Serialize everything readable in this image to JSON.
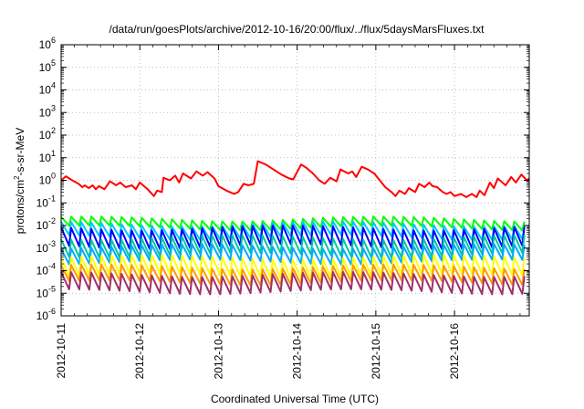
{
  "chart_data": {
    "type": "line",
    "title": "/data/run/goesPlots/archive/2012-10-16/20:00/flux/../flux/5daysMarsFluxes.txt",
    "xlabel": "Coordinated Universal Time (UTC)",
    "ylabel": {
      "base": "protons/cm",
      "sup": "2",
      "rest": "-s-sr-MeV"
    },
    "y_scale": "log",
    "ylim_exponents": [
      -6,
      6
    ],
    "y_ticks": [
      {
        "base": "10",
        "exp": "-6"
      },
      {
        "base": "10",
        "exp": "-5"
      },
      {
        "base": "10",
        "exp": "-4"
      },
      {
        "base": "10",
        "exp": "-3"
      },
      {
        "base": "10",
        "exp": "-2"
      },
      {
        "base": "10",
        "exp": "-1"
      },
      {
        "base": "10",
        "exp": "0"
      },
      {
        "base": "10",
        "exp": "1"
      },
      {
        "base": "10",
        "exp": "2"
      },
      {
        "base": "10",
        "exp": "3"
      },
      {
        "base": "10",
        "exp": "4"
      },
      {
        "base": "10",
        "exp": "5"
      },
      {
        "base": "10",
        "exp": "6"
      }
    ],
    "x_ticks": [
      "2012-10-11",
      "2012-10-12",
      "2012-10-13",
      "2012-10-14",
      "2012-10-15",
      "2012-10-16"
    ],
    "x_range_days": [
      0,
      5.95
    ],
    "grid": true,
    "series": [
      {
        "color": "#ff0000",
        "points": [
          [
            0.0,
            1.0
          ],
          [
            0.06,
            1.5
          ],
          [
            0.14,
            1.0
          ],
          [
            0.22,
            0.7
          ],
          [
            0.27,
            0.5
          ],
          [
            0.3,
            0.6
          ],
          [
            0.35,
            0.45
          ],
          [
            0.4,
            0.6
          ],
          [
            0.44,
            0.4
          ],
          [
            0.48,
            0.55
          ],
          [
            0.55,
            0.4
          ],
          [
            0.62,
            0.9
          ],
          [
            0.7,
            0.6
          ],
          [
            0.75,
            0.8
          ],
          [
            0.82,
            0.5
          ],
          [
            0.9,
            0.6
          ],
          [
            0.95,
            0.4
          ],
          [
            1.0,
            0.8
          ],
          [
            1.1,
            0.4
          ],
          [
            1.18,
            0.2
          ],
          [
            1.22,
            0.35
          ],
          [
            1.28,
            0.3
          ],
          [
            1.3,
            1.3
          ],
          [
            1.38,
            1.0
          ],
          [
            1.45,
            1.6
          ],
          [
            1.5,
            0.8
          ],
          [
            1.55,
            2.0
          ],
          [
            1.65,
            1.2
          ],
          [
            1.72,
            2.5
          ],
          [
            1.8,
            1.6
          ],
          [
            1.86,
            2.3
          ],
          [
            1.95,
            1.2
          ],
          [
            2.0,
            0.55
          ],
          [
            2.1,
            0.35
          ],
          [
            2.2,
            0.25
          ],
          [
            2.25,
            0.3
          ],
          [
            2.32,
            0.7
          ],
          [
            2.38,
            0.6
          ],
          [
            2.45,
            0.7
          ],
          [
            2.5,
            7.0
          ],
          [
            2.6,
            5.0
          ],
          [
            2.7,
            3.0
          ],
          [
            2.8,
            1.8
          ],
          [
            2.9,
            1.2
          ],
          [
            2.95,
            1.1
          ],
          [
            3.05,
            5.0
          ],
          [
            3.12,
            3.5
          ],
          [
            3.2,
            2.0
          ],
          [
            3.28,
            1.0
          ],
          [
            3.35,
            0.7
          ],
          [
            3.42,
            1.3
          ],
          [
            3.5,
            0.9
          ],
          [
            3.55,
            3.0
          ],
          [
            3.65,
            2.0
          ],
          [
            3.7,
            2.5
          ],
          [
            3.75,
            1.4
          ],
          [
            3.82,
            4.0
          ],
          [
            3.9,
            3.0
          ],
          [
            3.98,
            2.0
          ],
          [
            4.05,
            1.0
          ],
          [
            4.12,
            0.5
          ],
          [
            4.2,
            0.3
          ],
          [
            4.25,
            0.2
          ],
          [
            4.3,
            0.35
          ],
          [
            4.37,
            0.25
          ],
          [
            4.42,
            0.45
          ],
          [
            4.5,
            0.3
          ],
          [
            4.55,
            0.7
          ],
          [
            4.62,
            0.5
          ],
          [
            4.68,
            0.8
          ],
          [
            4.72,
            0.55
          ],
          [
            4.78,
            0.5
          ],
          [
            4.85,
            0.3
          ],
          [
            4.9,
            0.25
          ],
          [
            4.95,
            0.3
          ],
          [
            5.0,
            0.2
          ],
          [
            5.08,
            0.25
          ],
          [
            5.15,
            0.18
          ],
          [
            5.22,
            0.25
          ],
          [
            5.28,
            0.18
          ],
          [
            5.32,
            0.35
          ],
          [
            5.38,
            0.22
          ],
          [
            5.45,
            0.8
          ],
          [
            5.5,
            0.45
          ],
          [
            5.55,
            1.2
          ],
          [
            5.65,
            0.6
          ],
          [
            5.72,
            1.4
          ],
          [
            5.78,
            0.8
          ],
          [
            5.85,
            1.8
          ],
          [
            5.92,
            1.0
          ],
          [
            5.95,
            1.2
          ]
        ]
      },
      {
        "color": "#00ff00",
        "sawtooth": {
          "hi": 0.02,
          "lo": 0.008,
          "period": 0.128
        }
      },
      {
        "color": "#00c8ff",
        "sawtooth": {
          "hi": 0.012,
          "lo": 0.003,
          "period": 0.128
        }
      },
      {
        "color": "#0000ff",
        "sawtooth": {
          "hi": 0.008,
          "lo": 0.0012,
          "period": 0.128
        }
      },
      {
        "color": "#00c8a0",
        "sawtooth": {
          "hi": 0.003,
          "lo": 0.0005,
          "period": 0.128
        }
      },
      {
        "color": "#00aaff",
        "sawtooth": {
          "hi": 0.0012,
          "lo": 0.00025,
          "period": 0.128
        }
      },
      {
        "color": "#ffff00",
        "sawtooth": {
          "hi": 0.0004,
          "lo": 6e-05,
          "period": 0.128
        }
      },
      {
        "color": "#ff9900",
        "sawtooth": {
          "hi": 0.00015,
          "lo": 3e-05,
          "period": 0.128
        }
      },
      {
        "color": "#a0306a",
        "sawtooth": {
          "hi": 7e-05,
          "lo": 1.2e-05,
          "period": 0.128
        }
      }
    ]
  }
}
